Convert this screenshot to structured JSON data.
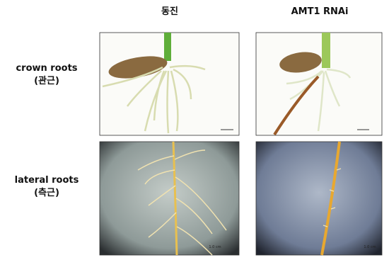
{
  "columns": [
    "동진",
    "AMT1 RNAi"
  ],
  "rows": [
    {
      "label": "crown roots",
      "sublabel": "(관근)"
    },
    {
      "label": "lateral roots",
      "sublabel": "(측근)"
    }
  ],
  "scale_bars": [
    "1.0 cm",
    "1.0 cm"
  ]
}
